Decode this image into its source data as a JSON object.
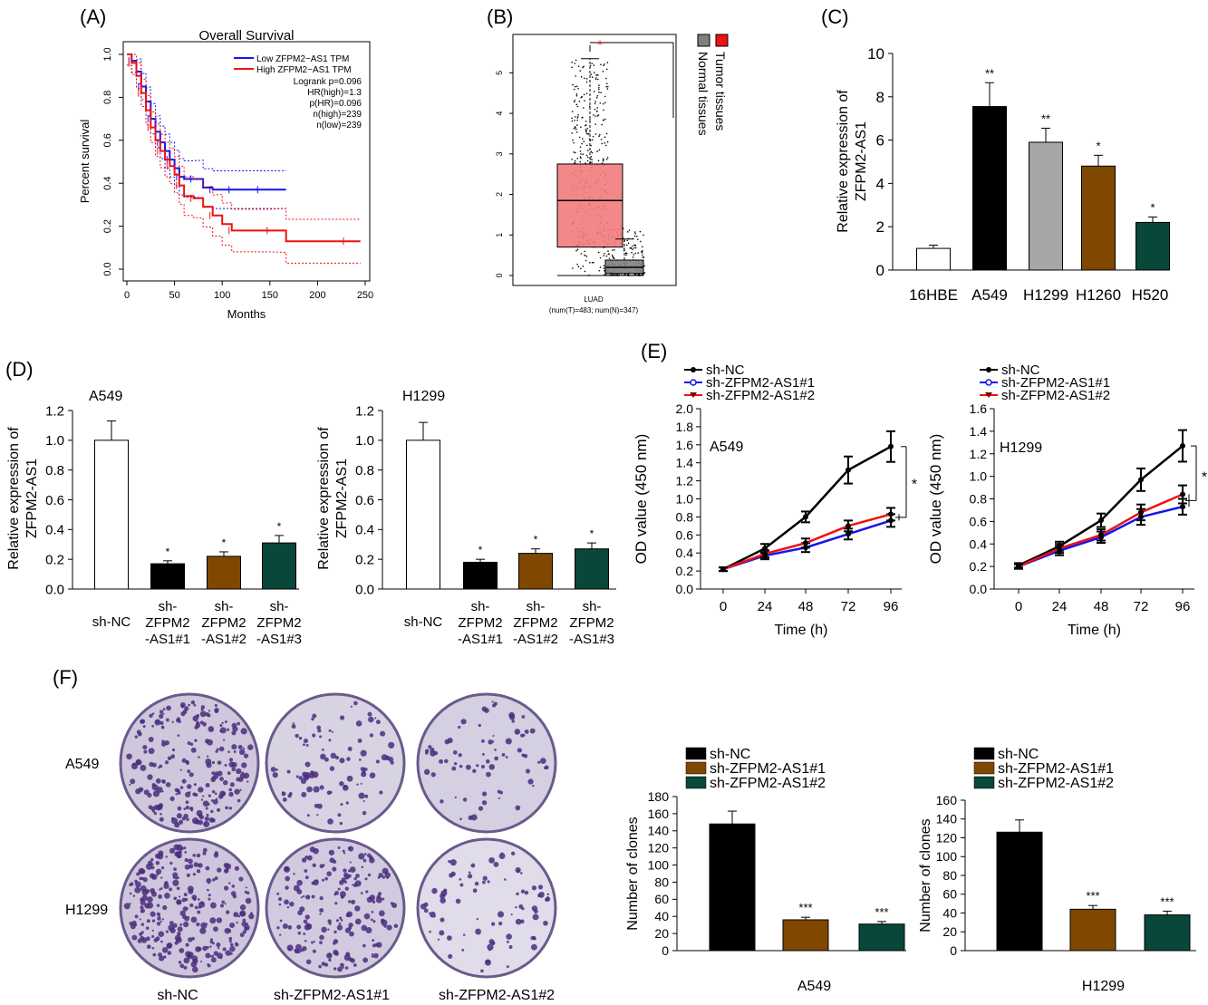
{
  "panels": {
    "A": "(A)",
    "B": "(B)",
    "C": "(C)",
    "D": "(D)",
    "E": "(E)",
    "F": "(F)"
  },
  "colors": {
    "blue": "#1515ee",
    "red": "#ee1111",
    "black": "#000000",
    "gray": "#a6a6a6",
    "brown": "#7f4700",
    "green": "#08473a",
    "tumor": "#f37b7b",
    "normal": "#7f7f7f",
    "dish": "#8b70b6"
  },
  "chart_data": [
    {
      "id": "A",
      "type": "line",
      "title": "Overall Survival",
      "xlabel": "Months",
      "ylabel": "Percent survival",
      "xlim": [
        0,
        250
      ],
      "ylim": [
        0,
        1.0
      ],
      "xticks": [
        0,
        50,
        100,
        150,
        200,
        250
      ],
      "yticks": [
        0.0,
        0.2,
        0.4,
        0.6,
        0.8,
        1.0
      ],
      "legend": [
        "Low ZFPM2−AS1 TPM",
        "High ZFPM2−AS1 TPM"
      ],
      "stats": [
        "Logrank p=0.096",
        "HR(high)=1.3",
        "p(HR)=0.096",
        "n(high)=239",
        "n(low)=239"
      ],
      "series": [
        {
          "name": "Low ZFPM2−AS1 TPM",
          "color": "blue",
          "x": [
            0,
            5,
            10,
            15,
            20,
            25,
            30,
            35,
            40,
            45,
            50,
            55,
            60,
            70,
            80,
            90,
            100,
            110,
            120,
            140,
            167
          ],
          "y": [
            1.0,
            0.97,
            0.92,
            0.85,
            0.78,
            0.7,
            0.64,
            0.59,
            0.55,
            0.51,
            0.47,
            0.43,
            0.42,
            0.42,
            0.38,
            0.37,
            0.37,
            0.37,
            0.37,
            0.37,
            0.37
          ]
        },
        {
          "name": "High ZFPM2−AS1 TPM",
          "color": "red",
          "x": [
            0,
            5,
            10,
            15,
            20,
            25,
            30,
            35,
            40,
            45,
            50,
            55,
            60,
            70,
            80,
            90,
            100,
            110,
            120,
            150,
            167,
            230,
            245
          ],
          "y": [
            1.0,
            0.96,
            0.9,
            0.82,
            0.74,
            0.66,
            0.6,
            0.55,
            0.51,
            0.48,
            0.44,
            0.39,
            0.34,
            0.33,
            0.29,
            0.25,
            0.21,
            0.18,
            0.18,
            0.18,
            0.13,
            0.13,
            0.13
          ]
        }
      ]
    },
    {
      "id": "B",
      "type": "box",
      "xlabel": "LUAD",
      "xlabel2": "(num(T)=483; num(N)=347)",
      "ylim": [
        0,
        5.5
      ],
      "yticks": [
        0,
        1,
        2,
        3,
        4,
        5
      ],
      "legend": [
        "Tumor tissues",
        "Normal tissues"
      ],
      "significance": "*",
      "boxes": [
        {
          "name": "Tumor tissues",
          "min": 0.0,
          "q1": 0.7,
          "median": 1.85,
          "q3": 2.75,
          "max": 5.35
        },
        {
          "name": "Normal tissues",
          "min": 0.0,
          "q1": 0.05,
          "median": 0.2,
          "q3": 0.38,
          "max": 0.9
        }
      ]
    },
    {
      "id": "C",
      "type": "bar",
      "ylabel": "Relative expression of ZFPM2-AS1",
      "ylabel_lines": [
        "Relative expression of",
        "ZFPM2-AS1"
      ],
      "ylim": [
        0,
        10
      ],
      "yticks": [
        0,
        2,
        4,
        6,
        8,
        10
      ],
      "categories": [
        "16HBE",
        "A549",
        "H1299",
        "H1260",
        "H520"
      ],
      "values": [
        1.0,
        7.55,
        5.9,
        4.8,
        2.2
      ],
      "errors": [
        0.15,
        1.1,
        0.65,
        0.5,
        0.25
      ],
      "sig": [
        "",
        "**",
        "**",
        "*",
        "*"
      ],
      "colors": [
        "white",
        "black",
        "gray",
        "brown",
        "green"
      ]
    },
    {
      "id": "D1",
      "type": "bar",
      "title": "A549",
      "ylabel_lines": [
        "Relative expression of",
        "ZFPM2-AS1"
      ],
      "ylim": [
        0,
        1.2
      ],
      "yticks": [
        "0.0",
        "0.2",
        "0.4",
        "0.6",
        "0.8",
        "1.0",
        "1.2"
      ],
      "categories": [
        [
          "sh-NC"
        ],
        [
          "sh-",
          "ZFPM2",
          "-AS1#1"
        ],
        [
          "sh-",
          "ZFPM2",
          "-AS1#2"
        ],
        [
          "sh-",
          "ZFPM2",
          "-AS1#3"
        ]
      ],
      "values": [
        1.0,
        0.17,
        0.22,
        0.31
      ],
      "errors": [
        0.13,
        0.02,
        0.03,
        0.05
      ],
      "sig": [
        "",
        "*",
        "*",
        "*"
      ],
      "colors": [
        "white",
        "black",
        "brown",
        "green"
      ]
    },
    {
      "id": "D2",
      "type": "bar",
      "title": "H1299",
      "ylabel_lines": [
        "Relative expression of",
        "ZFPM2-AS1"
      ],
      "ylim": [
        0,
        1.2
      ],
      "yticks": [
        "0.0",
        "0.2",
        "0.4",
        "0.6",
        "0.8",
        "1.0",
        "1.2"
      ],
      "categories": [
        [
          "sh-NC"
        ],
        [
          "sh-",
          "ZFPM2",
          "-AS1#1"
        ],
        [
          "sh-",
          "ZFPM2",
          "-AS1#2"
        ],
        [
          "sh-",
          "ZFPM2",
          "-AS1#3"
        ]
      ],
      "values": [
        1.0,
        0.18,
        0.24,
        0.27
      ],
      "errors": [
        0.12,
        0.02,
        0.03,
        0.04
      ],
      "sig": [
        "",
        "*",
        "*",
        "*"
      ],
      "colors": [
        "white",
        "black",
        "brown",
        "green"
      ]
    },
    {
      "id": "E1",
      "type": "line",
      "title": "A549",
      "xlabel": "Time (h)",
      "ylabel": "OD value (450 nm)",
      "ylim": [
        0,
        2.0
      ],
      "yticks": [
        "0.0",
        "0.2",
        "0.4",
        "0.6",
        "0.8",
        "1.0",
        "1.2",
        "1.4",
        "1.6",
        "1.8",
        "2.0"
      ],
      "x": [
        0,
        24,
        48,
        72,
        96
      ],
      "legend": [
        "sh-NC",
        "sh-ZFPM2-AS1#1",
        "sh-ZFPM2-AS1#2"
      ],
      "significance": "*",
      "series": [
        {
          "name": "sh-NC",
          "color": "black",
          "marker": "filled",
          "values": [
            0.22,
            0.45,
            0.8,
            1.32,
            1.58
          ],
          "errors": [
            0.02,
            0.05,
            0.06,
            0.15,
            0.17
          ]
        },
        {
          "name": "sh-ZFPM2-AS1#1",
          "color": "blue",
          "marker": "open",
          "values": [
            0.22,
            0.37,
            0.46,
            0.61,
            0.76
          ],
          "errors": [
            0.02,
            0.04,
            0.05,
            0.06,
            0.07
          ]
        },
        {
          "name": "sh-ZFPM2-AS1#2",
          "color": "red",
          "marker": "triangle",
          "values": [
            0.22,
            0.39,
            0.51,
            0.7,
            0.83
          ],
          "errors": [
            0.02,
            0.04,
            0.05,
            0.06,
            0.07
          ]
        }
      ]
    },
    {
      "id": "E2",
      "type": "line",
      "title": "H1299",
      "xlabel": "Time (h)",
      "ylabel": "OD value (450 nm)",
      "ylim": [
        0,
        1.6
      ],
      "yticks": [
        "0.0",
        "0.2",
        "0.4",
        "0.6",
        "0.8",
        "1.0",
        "1.2",
        "1.4",
        "1.6"
      ],
      "x": [
        0,
        24,
        48,
        72,
        96
      ],
      "legend": [
        "sh-NC",
        "sh-ZFPM2-AS1#1",
        "sh-ZFPM2-AS1#2"
      ],
      "significance": "*",
      "series": [
        {
          "name": "sh-NC",
          "color": "black",
          "marker": "filled",
          "values": [
            0.21,
            0.38,
            0.61,
            0.97,
            1.27
          ],
          "errors": [
            0.02,
            0.04,
            0.06,
            0.1,
            0.14
          ]
        },
        {
          "name": "sh-ZFPM2-AS1#1",
          "color": "blue",
          "marker": "open",
          "values": [
            0.2,
            0.34,
            0.46,
            0.64,
            0.73
          ],
          "errors": [
            0.02,
            0.04,
            0.05,
            0.07,
            0.07
          ]
        },
        {
          "name": "sh-ZFPM2-AS1#2",
          "color": "red",
          "marker": "triangle",
          "values": [
            0.2,
            0.36,
            0.48,
            0.68,
            0.84
          ],
          "errors": [
            0.02,
            0.04,
            0.05,
            0.07,
            0.08
          ]
        }
      ]
    },
    {
      "id": "F1",
      "type": "bar",
      "xlabel": "A549",
      "ylabel": "Number of clones",
      "ylim": [
        0,
        180
      ],
      "yticks": [
        0,
        20,
        40,
        60,
        80,
        100,
        120,
        140,
        160,
        180
      ],
      "legend": [
        "sh-NC",
        "sh-ZFPM2-AS1#1",
        "sh-ZFPM2-AS1#2"
      ],
      "values": [
        148,
        36,
        31
      ],
      "errors": [
        15,
        3,
        3
      ],
      "sig": [
        "",
        "***",
        "***"
      ],
      "colors": [
        "black",
        "brown",
        "green"
      ]
    },
    {
      "id": "F2",
      "type": "bar",
      "xlabel": "H1299",
      "ylabel": "Number of clones",
      "ylim": [
        0,
        160
      ],
      "yticks": [
        0,
        20,
        40,
        60,
        80,
        100,
        120,
        140,
        160
      ],
      "legend": [
        "sh-NC",
        "sh-ZFPM2-AS1#1",
        "sh-ZFPM2-AS1#2"
      ],
      "values": [
        126,
        44,
        38
      ],
      "errors": [
        13,
        4,
        4
      ],
      "sig": [
        "",
        "***",
        "***"
      ],
      "colors": [
        "black",
        "brown",
        "green"
      ]
    }
  ],
  "colony": {
    "rows": [
      "A549",
      "H1299"
    ],
    "cols": [
      "sh-NC",
      "sh-ZFPM2-AS1#1",
      "sh-ZFPM2-AS1#2"
    ]
  }
}
